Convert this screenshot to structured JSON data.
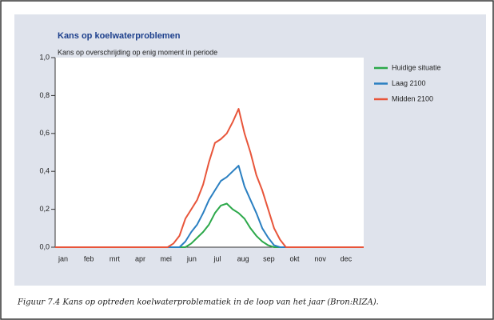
{
  "chart_data": {
    "type": "line",
    "title": "Kans op koelwaterproblemen",
    "y_label": "Kans op overschrijding op enig moment in periode",
    "categories": [
      "jan",
      "feb",
      "mrt",
      "apr",
      "mei",
      "jun",
      "jul",
      "aug",
      "sep",
      "okt",
      "nov",
      "dec"
    ],
    "x": [
      0,
      133,
      140,
      147,
      154,
      161,
      168,
      175,
      182,
      189,
      196,
      203,
      210,
      217,
      224,
      231,
      238,
      245,
      252,
      259,
      266,
      273,
      280,
      365
    ],
    "xlim": [
      0,
      365
    ],
    "series": [
      {
        "name": "Huidige situatie",
        "color": "#2ca84a",
        "values": [
          0,
          0,
          0,
          0,
          0,
          0.02,
          0.05,
          0.08,
          0.12,
          0.18,
          0.22,
          0.23,
          0.2,
          0.18,
          0.15,
          0.1,
          0.06,
          0.03,
          0.01,
          0,
          0,
          0,
          0,
          0
        ]
      },
      {
        "name": "Laag 2100",
        "color": "#2a7fc1",
        "values": [
          0,
          0,
          0,
          0,
          0.03,
          0.08,
          0.12,
          0.18,
          0.25,
          0.3,
          0.35,
          0.37,
          0.4,
          0.43,
          0.32,
          0.25,
          0.18,
          0.1,
          0.05,
          0.01,
          0,
          0,
          0,
          0
        ]
      },
      {
        "name": "Midden 2100",
        "color": "#e8553a",
        "values": [
          0,
          0,
          0.02,
          0.06,
          0.15,
          0.2,
          0.25,
          0.33,
          0.45,
          0.55,
          0.57,
          0.6,
          0.66,
          0.73,
          0.6,
          0.5,
          0.38,
          0.3,
          0.2,
          0.1,
          0.04,
          0,
          0,
          0
        ]
      }
    ],
    "ylim": [
      0,
      1
    ],
    "yticks": [
      {
        "value": 0,
        "label": "0,0"
      },
      {
        "value": 0.2,
        "label": "0,2"
      },
      {
        "value": 0.4,
        "label": "0,4"
      },
      {
        "value": 0.6,
        "label": "0,6"
      },
      {
        "value": 0.8,
        "label": "0,8"
      },
      {
        "value": 1,
        "label": "1,0"
      }
    ],
    "legend": "right"
  },
  "caption": "Figuur 7.4 Kans op optreden koelwaterproblematiek in de loop van het jaar (Bron:RIZA)."
}
